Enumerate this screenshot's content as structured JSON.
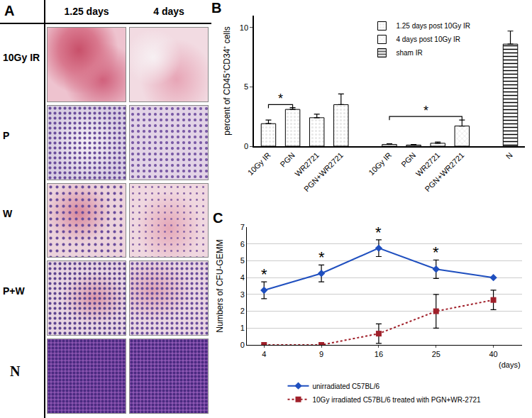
{
  "image_panel": {
    "label": "A",
    "columns": [
      "1.25 days",
      "4 days"
    ],
    "rows": [
      "10Gy IR",
      "P",
      "W",
      "P+W",
      "N"
    ]
  },
  "chart_data": [
    {
      "label": "B",
      "type": "bar",
      "categories": [
        "10Gy IR",
        "PGN",
        "WR2721",
        "PGN+WR2721",
        null,
        "10Gy IR",
        "PGN",
        "WR2721",
        "PGN+WR2721",
        null,
        "N"
      ],
      "ylabel": "percent of CD45⁺CD34⁺ cells",
      "ylim": [
        0,
        11
      ],
      "yticks": [
        0,
        5,
        10
      ],
      "grid": false,
      "legend": "top right",
      "series": [
        {
          "name": "1.25 days post 10Gy IR",
          "color": "#555555",
          "marker": "dots",
          "values": [
            1.9,
            3.1,
            2.4,
            3.5,
            null,
            null,
            null,
            null,
            null,
            null,
            null
          ],
          "errors": [
            0.3,
            0.15,
            0.3,
            0.9,
            null,
            null,
            null,
            null,
            null,
            null,
            null
          ]
        },
        {
          "name": "4 days post 10Gy IR",
          "color": "#555555",
          "marker": "crosshatch",
          "values": [
            null,
            null,
            null,
            null,
            null,
            0.15,
            0.1,
            0.25,
            1.7,
            null,
            null
          ],
          "errors": [
            null,
            null,
            null,
            null,
            null,
            0.05,
            0.05,
            0.1,
            0.5,
            null,
            null
          ]
        },
        {
          "name": "sham IR",
          "color": "#ffffff",
          "marker": "stripes",
          "values": [
            null,
            null,
            null,
            null,
            null,
            null,
            null,
            null,
            null,
            null,
            8.6
          ],
          "errors": [
            null,
            null,
            null,
            null,
            null,
            null,
            null,
            null,
            null,
            null,
            1.1
          ]
        }
      ],
      "annotations": [
        {
          "text": "*",
          "from": 0,
          "to": 1,
          "y": 3.5
        },
        {
          "text": "*",
          "from": 5,
          "to": 8,
          "y": 2.5
        }
      ]
    },
    {
      "label": "C",
      "type": "line",
      "categories": [
        "4",
        "9",
        "16",
        "25",
        "40"
      ],
      "xlabel": "(days)",
      "ylabel": "Numbers of CFU-GEMM",
      "ylim": [
        0,
        7
      ],
      "yticks": [
        0,
        1,
        2,
        3,
        4,
        5,
        6,
        7
      ],
      "grid": true,
      "legend": "bottom",
      "series": [
        {
          "name": "unirradiated C57BL/6",
          "color": "#1f4fbf",
          "marker": "diamond",
          "line_style": "solid",
          "values": [
            3.25,
            4.25,
            5.75,
            4.5,
            4.0
          ],
          "errors": [
            0.5,
            0.5,
            0.5,
            0.55,
            0
          ],
          "marks": [
            "*",
            "*",
            "*",
            "*",
            null
          ]
        },
        {
          "name": "10Gy irradiated C57BL/6 treated with PGN+WR-2721",
          "color": "#a0202a",
          "marker": "square",
          "line_style": "dot",
          "values": [
            0,
            0,
            0.67,
            2.0,
            2.67
          ],
          "errors": [
            0,
            0,
            0.58,
            1.0,
            0.58
          ]
        }
      ]
    }
  ]
}
